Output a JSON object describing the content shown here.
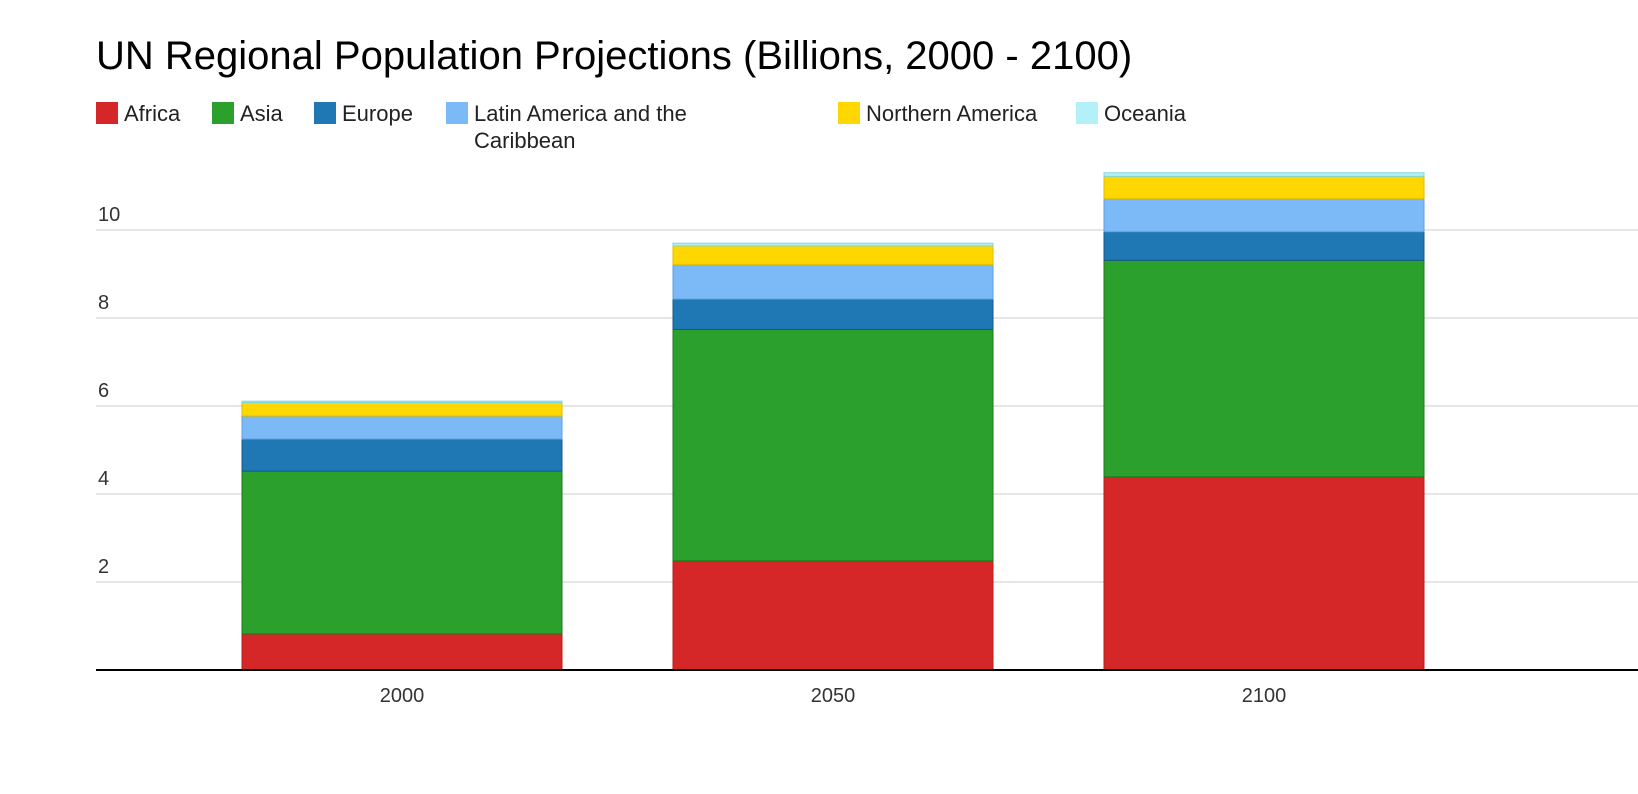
{
  "chart_data": {
    "type": "bar",
    "stacked": true,
    "title": "UN Regional Population Projections (Billions, 2000 - 2100)",
    "categories": [
      "2000",
      "2050",
      "2100"
    ],
    "ylim": [
      0,
      11.5
    ],
    "yticks": [
      "2",
      "4",
      "6",
      "8",
      "10"
    ],
    "grid": true,
    "legend": "top",
    "series": [
      {
        "name": "Africa",
        "color": "#d62728",
        "values": [
          0.82,
          2.48,
          4.39
        ]
      },
      {
        "name": "Asia",
        "color": "#2ca02c",
        "values": [
          3.7,
          5.26,
          4.92
        ]
      },
      {
        "name": "Europe",
        "color": "#1f77b4",
        "values": [
          0.73,
          0.69,
          0.65
        ]
      },
      {
        "name": "Latin America and the Caribbean",
        "color": "#7cb9f7",
        "values": [
          0.52,
          0.78,
          0.75
        ]
      },
      {
        "name": "Northern America",
        "color": "#ffd700",
        "values": [
          0.31,
          0.43,
          0.51
        ]
      },
      {
        "name": "Oceania",
        "color": "#b3f0f7",
        "values": [
          0.03,
          0.06,
          0.08
        ]
      }
    ]
  }
}
